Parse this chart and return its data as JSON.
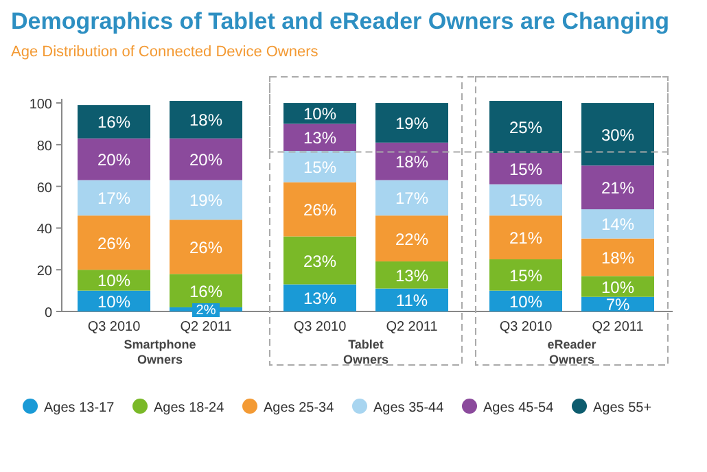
{
  "chart_data": {
    "type": "bar",
    "stacked": true,
    "title": "Demographics of Tablet and eReader Owners are Changing",
    "subtitle": "Age Distribution of Connected Device Owners",
    "categories": [
      "Q3 2010",
      "Q2 2011",
      "Q3 2010",
      "Q2 2011",
      "Q3 2010",
      "Q2 2011"
    ],
    "series": [
      {
        "name": "Ages 13-17",
        "color": "#1a9ad6",
        "values": [
          10,
          2,
          13,
          11,
          10,
          7
        ],
        "value_labels": [
          "10%",
          "2%",
          "13%",
          "11%",
          "10%",
          "7%"
        ]
      },
      {
        "name": "Ages 18-24",
        "color": "#7ab928",
        "values": [
          10,
          16,
          23,
          13,
          15,
          10
        ],
        "value_labels": [
          "10%",
          "16%",
          "23%",
          "13%",
          "15%",
          "10%"
        ]
      },
      {
        "name": "Ages 25-34",
        "color": "#f39a34",
        "values": [
          26,
          26,
          26,
          22,
          21,
          18
        ],
        "value_labels": [
          "26%",
          "26%",
          "26%",
          "22%",
          "21%",
          "18%"
        ]
      },
      {
        "name": "Ages 35-44",
        "color": "#a8d5f0",
        "values": [
          17,
          19,
          15,
          17,
          15,
          14
        ],
        "value_labels": [
          "17%",
          "19%",
          "15%",
          "17%",
          "15%",
          "14%"
        ]
      },
      {
        "name": "Ages 45-54",
        "color": "#8b4a9c",
        "values": [
          20,
          20,
          13,
          18,
          15,
          21
        ],
        "value_labels": [
          "20%",
          "20%",
          "13%",
          "18%",
          "15%",
          "21%"
        ]
      },
      {
        "name": "Ages 55+",
        "color": "#0d5c6e",
        "values": [
          16,
          18,
          10,
          19,
          25,
          30
        ],
        "value_labels": [
          "16%",
          "18%",
          "10%",
          "19%",
          "25%",
          "30%"
        ]
      }
    ],
    "ylim": [
      0,
      102
    ],
    "yticks": [
      0,
      20,
      40,
      60,
      80,
      100
    ],
    "legend": "bottom",
    "grid": false,
    "annotations": [
      "Smartphone Owners",
      "Tablet Owners",
      "eReader Owners"
    ]
  }
}
